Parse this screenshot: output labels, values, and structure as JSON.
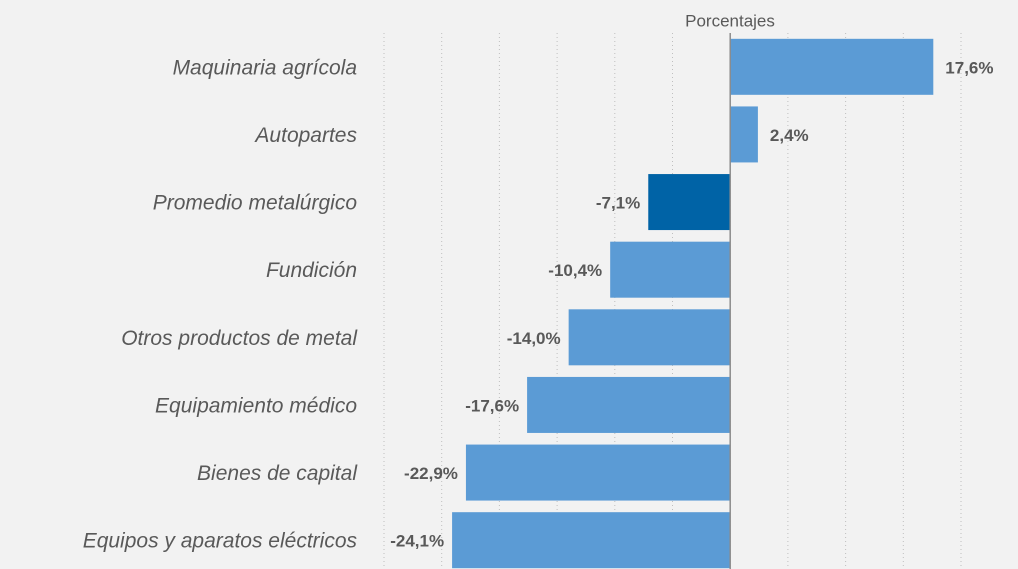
{
  "chart_data": {
    "type": "barh",
    "xlabel": "Porcentajes",
    "categories": [
      "Maquinaria agrícola",
      "Autopartes",
      "Promedio metalúrgico",
      "Fundición",
      "Otros productos de metal",
      "Equipamiento médico",
      "Bienes de capital",
      "Equipos y aparatos eléctricos"
    ],
    "values": [
      17.6,
      2.4,
      -7.1,
      -10.4,
      -14.0,
      -17.6,
      -22.9,
      -24.1
    ],
    "value_labels": [
      "17,6%",
      "2,4%",
      "-7,1%",
      "-10,4%",
      "-14,0%",
      "-17,6%",
      "-22,9%",
      "-24,1%"
    ],
    "colors": [
      "#5b9bd5",
      "#5b9bd5",
      "#0063a6",
      "#5b9bd5",
      "#5b9bd5",
      "#5b9bd5",
      "#5b9bd5",
      "#5b9bd5"
    ],
    "xlim": [
      -30,
      20
    ],
    "xticks": [
      -30,
      -25,
      -20,
      -15,
      -10,
      -5,
      0,
      5,
      10,
      15,
      20
    ],
    "grid": true
  }
}
